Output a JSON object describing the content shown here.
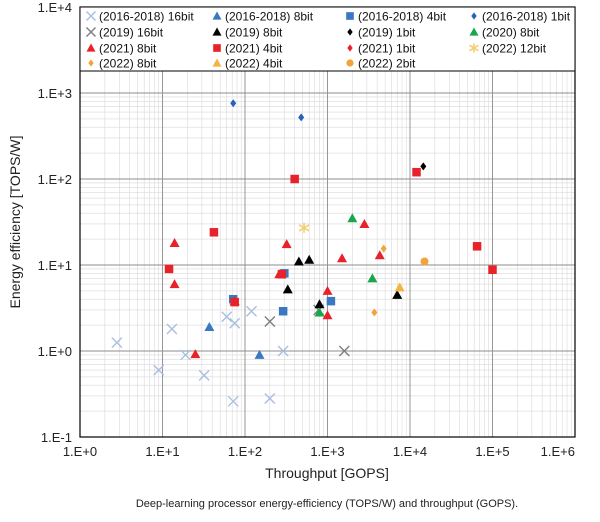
{
  "chart_data": {
    "type": "scatter",
    "title": "",
    "caption": "Deep-learning processor energy-efficiency (TOPS/W) and throughput (GOPS).",
    "xlabel": "Throughput [GOPS]",
    "ylabel": "Energy efficiency [TOPS/W]",
    "x_scale": "log",
    "y_scale": "log",
    "xlim": [
      1,
      1000000
    ],
    "ylim": [
      0.1,
      10000
    ],
    "x_ticks": [
      {
        "value": 1,
        "label": "1.E+0"
      },
      {
        "value": 10,
        "label": "1.E+1"
      },
      {
        "value": 100,
        "label": "1.E+2"
      },
      {
        "value": 1000,
        "label": "1.E+3"
      },
      {
        "value": 10000,
        "label": "1.E+4"
      },
      {
        "value": 100000,
        "label": "1.E+5"
      },
      {
        "value": 1000000,
        "label": "1.E+6"
      }
    ],
    "y_ticks": [
      {
        "value": 0.1,
        "label": "1.E-1"
      },
      {
        "value": 1,
        "label": "1.E+0"
      },
      {
        "value": 10,
        "label": "1.E+1"
      },
      {
        "value": 100,
        "label": "1.E+2"
      },
      {
        "value": 1000,
        "label": "1.E+3"
      },
      {
        "value": 10000,
        "label": "1.E+4"
      }
    ],
    "grid": true,
    "legend_position": "top",
    "series": [
      {
        "name": "(2016-2018) 16bit",
        "marker": "x",
        "color": "#a8bfdf",
        "points": [
          [
            2.8,
            1.25
          ],
          [
            9,
            0.6
          ],
          [
            13,
            1.8
          ],
          [
            19,
            0.9
          ],
          [
            32,
            0.52
          ],
          [
            60,
            2.5
          ],
          [
            72,
            0.26
          ],
          [
            75,
            2.1
          ],
          [
            120,
            2.9
          ],
          [
            200,
            0.28
          ],
          [
            290,
            1.0
          ]
        ]
      },
      {
        "name": "(2016-2018) 8bit",
        "marker": "triangle",
        "color": "#3a78c2",
        "points": [
          [
            37,
            1.9
          ],
          [
            150,
            0.9
          ]
        ]
      },
      {
        "name": "(2016-2018) 4bit",
        "marker": "square",
        "color": "#3a78c2",
        "points": [
          [
            72,
            4.0
          ],
          [
            290,
            2.9
          ],
          [
            300,
            8.0
          ],
          [
            1100,
            3.8
          ]
        ]
      },
      {
        "name": "(2016-2018) 1bit",
        "marker": "diamond",
        "color": "#2463bb",
        "points": [
          [
            72,
            760
          ],
          [
            480,
            520
          ]
        ]
      },
      {
        "name": "(2019) 16bit",
        "marker": "x",
        "color": "#7f7f7f",
        "points": [
          [
            200,
            2.2
          ],
          [
            780,
            3.0
          ],
          [
            1600,
            1.0
          ]
        ]
      },
      {
        "name": "(2019) 8bit",
        "marker": "triangle",
        "color": "#000000",
        "points": [
          [
            330,
            5.2
          ],
          [
            450,
            11.0
          ],
          [
            600,
            11.5
          ],
          [
            800,
            3.5
          ],
          [
            7000,
            4.5
          ]
        ]
      },
      {
        "name": "(2019) 1bit",
        "marker": "diamond",
        "color": "#000000",
        "points": [
          [
            14500,
            140
          ]
        ]
      },
      {
        "name": "(2020) 8bit",
        "marker": "triangle",
        "color": "#1aa64a",
        "points": [
          [
            800,
            2.8
          ],
          [
            2000,
            35
          ],
          [
            3500,
            7.0
          ]
        ]
      },
      {
        "name": "(2021) 8bit",
        "marker": "triangle",
        "color": "#e8222a",
        "points": [
          [
            14,
            18
          ],
          [
            14,
            6.0
          ],
          [
            25,
            0.92
          ],
          [
            75,
            3.8
          ],
          [
            260,
            7.8
          ],
          [
            320,
            17.5
          ],
          [
            1000,
            5.0
          ],
          [
            1000,
            2.6
          ],
          [
            1500,
            12
          ],
          [
            2800,
            30
          ],
          [
            4300,
            13
          ]
        ]
      },
      {
        "name": "(2021) 4bit",
        "marker": "square",
        "color": "#e8222a",
        "points": [
          [
            12,
            9
          ],
          [
            42,
            24
          ],
          [
            75,
            3.7
          ],
          [
            280,
            7.8
          ],
          [
            400,
            100
          ],
          [
            12000,
            120
          ],
          [
            65000,
            16.5
          ],
          [
            100000,
            8.8
          ]
        ]
      },
      {
        "name": "(2021) 1bit",
        "marker": "diamond",
        "color": "#e8222a",
        "points": [
          [
            190000,
            1950
          ]
        ]
      },
      {
        "name": "(2022) 12bit",
        "marker": "asterisk",
        "color": "#f2cf70",
        "points": [
          [
            520,
            27
          ]
        ]
      },
      {
        "name": "(2022) 8bit",
        "marker": "diamond",
        "color": "#f2a33a",
        "points": [
          [
            3700,
            2.8
          ],
          [
            4800,
            15.5
          ]
        ]
      },
      {
        "name": "(2022) 4bit",
        "marker": "triangle",
        "color": "#f2b540",
        "points": [
          [
            7500,
            5.5
          ]
        ]
      },
      {
        "name": "(2022) 2bit",
        "marker": "circle",
        "color": "#f2a33a",
        "points": [
          [
            15000,
            11
          ]
        ]
      }
    ]
  }
}
